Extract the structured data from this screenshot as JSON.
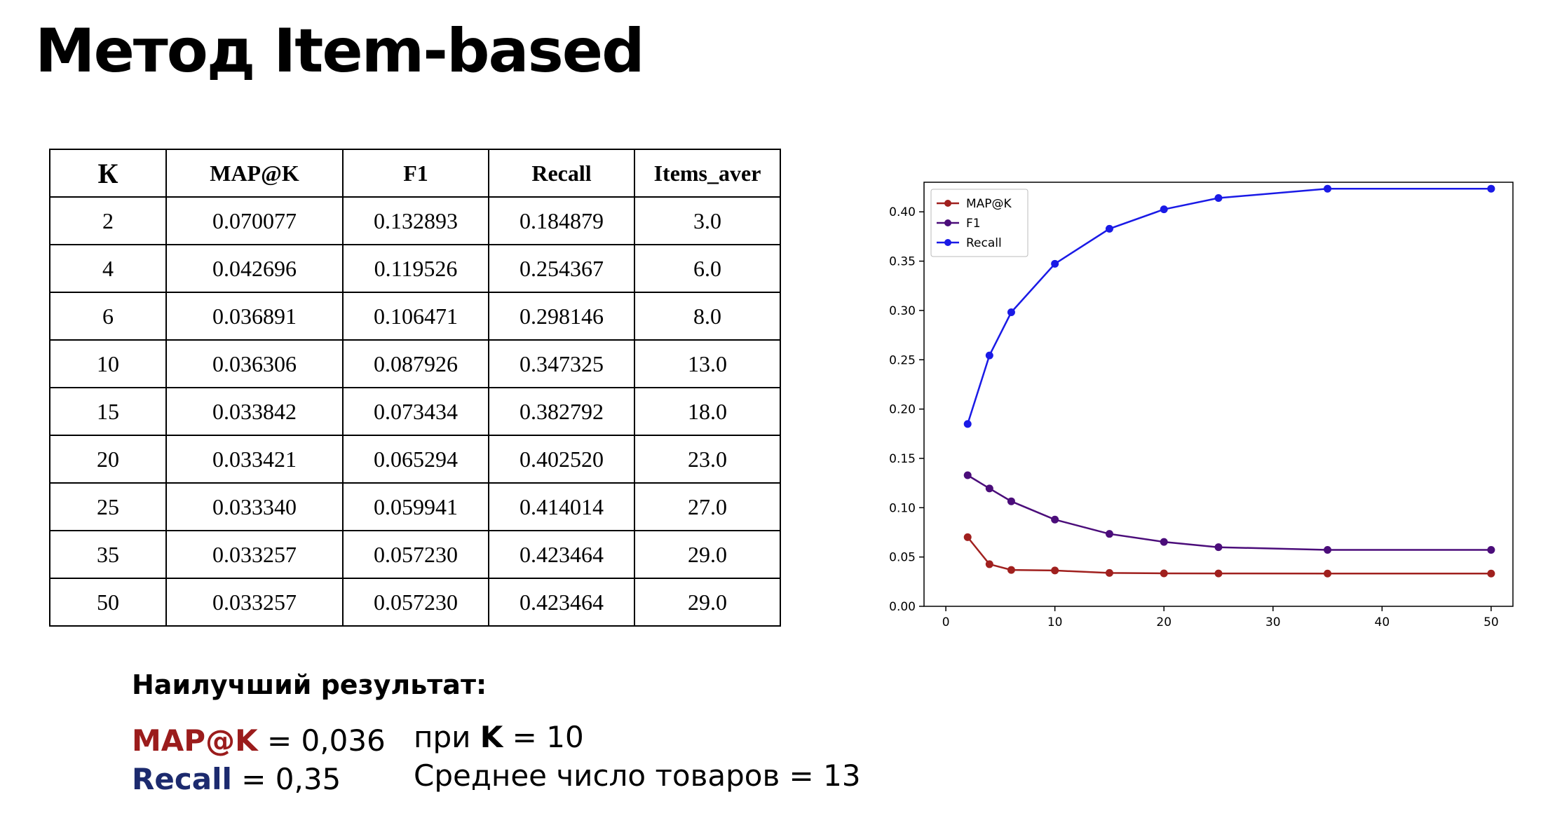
{
  "title": "Метод Item-based",
  "table": {
    "headers": [
      "К",
      "MAP@K",
      "F1",
      "Recall",
      "Items_aver"
    ],
    "rows": [
      [
        "2",
        "0.070077",
        "0.132893",
        "0.184879",
        "3.0"
      ],
      [
        "4",
        "0.042696",
        "0.119526",
        "0.254367",
        "6.0"
      ],
      [
        "6",
        "0.036891",
        "0.106471",
        "0.298146",
        "8.0"
      ],
      [
        "10",
        "0.036306",
        "0.087926",
        "0.347325",
        "13.0"
      ],
      [
        "15",
        "0.033842",
        "0.073434",
        "0.382792",
        "18.0"
      ],
      [
        "20",
        "0.033421",
        "0.065294",
        "0.402520",
        "23.0"
      ],
      [
        "25",
        "0.033340",
        "0.059941",
        "0.414014",
        "27.0"
      ],
      [
        "35",
        "0.033257",
        "0.057230",
        "0.423464",
        "29.0"
      ],
      [
        "50",
        "0.033257",
        "0.057230",
        "0.423464",
        "29.0"
      ]
    ]
  },
  "chart_data": {
    "type": "line",
    "title": "",
    "xlabel": "",
    "ylabel": "",
    "x": [
      2,
      4,
      6,
      10,
      15,
      20,
      25,
      35,
      50
    ],
    "xlim": [
      -2,
      52
    ],
    "ylim": [
      0,
      0.43
    ],
    "xticks": [
      0,
      10,
      20,
      30,
      40,
      50
    ],
    "yticks": [
      0.0,
      0.05,
      0.1,
      0.15,
      0.2,
      0.25,
      0.3,
      0.35,
      0.4
    ],
    "ytick_labels": [
      "0.00",
      "0.05",
      "0.10",
      "0.15",
      "0.20",
      "0.25",
      "0.30",
      "0.35",
      "0.40"
    ],
    "grid": false,
    "legend_position": "top-left",
    "series": [
      {
        "name": "MAP@K",
        "color": "#a0201e",
        "values": [
          0.070077,
          0.042696,
          0.036891,
          0.036306,
          0.033842,
          0.033421,
          0.03334,
          0.033257,
          0.033257
        ]
      },
      {
        "name": "F1",
        "color": "#4b0d7a",
        "values": [
          0.132893,
          0.119526,
          0.106471,
          0.087926,
          0.073434,
          0.065294,
          0.059941,
          0.05723,
          0.05723
        ]
      },
      {
        "name": "Recall",
        "color": "#1a1ae6",
        "values": [
          0.184879,
          0.254367,
          0.298146,
          0.347325,
          0.382792,
          0.40252,
          0.414014,
          0.423464,
          0.423464
        ]
      }
    ]
  },
  "best": {
    "heading": "Наилучший результат:",
    "map_label": "MAP@K",
    "map_value": " = 0,036",
    "recall_label": "Recall",
    "recall_value": " = 0,35",
    "k_prefix": "при ",
    "k_label": "K",
    "k_value": " = 10",
    "items_text": "Среднее число товаров = 13"
  }
}
